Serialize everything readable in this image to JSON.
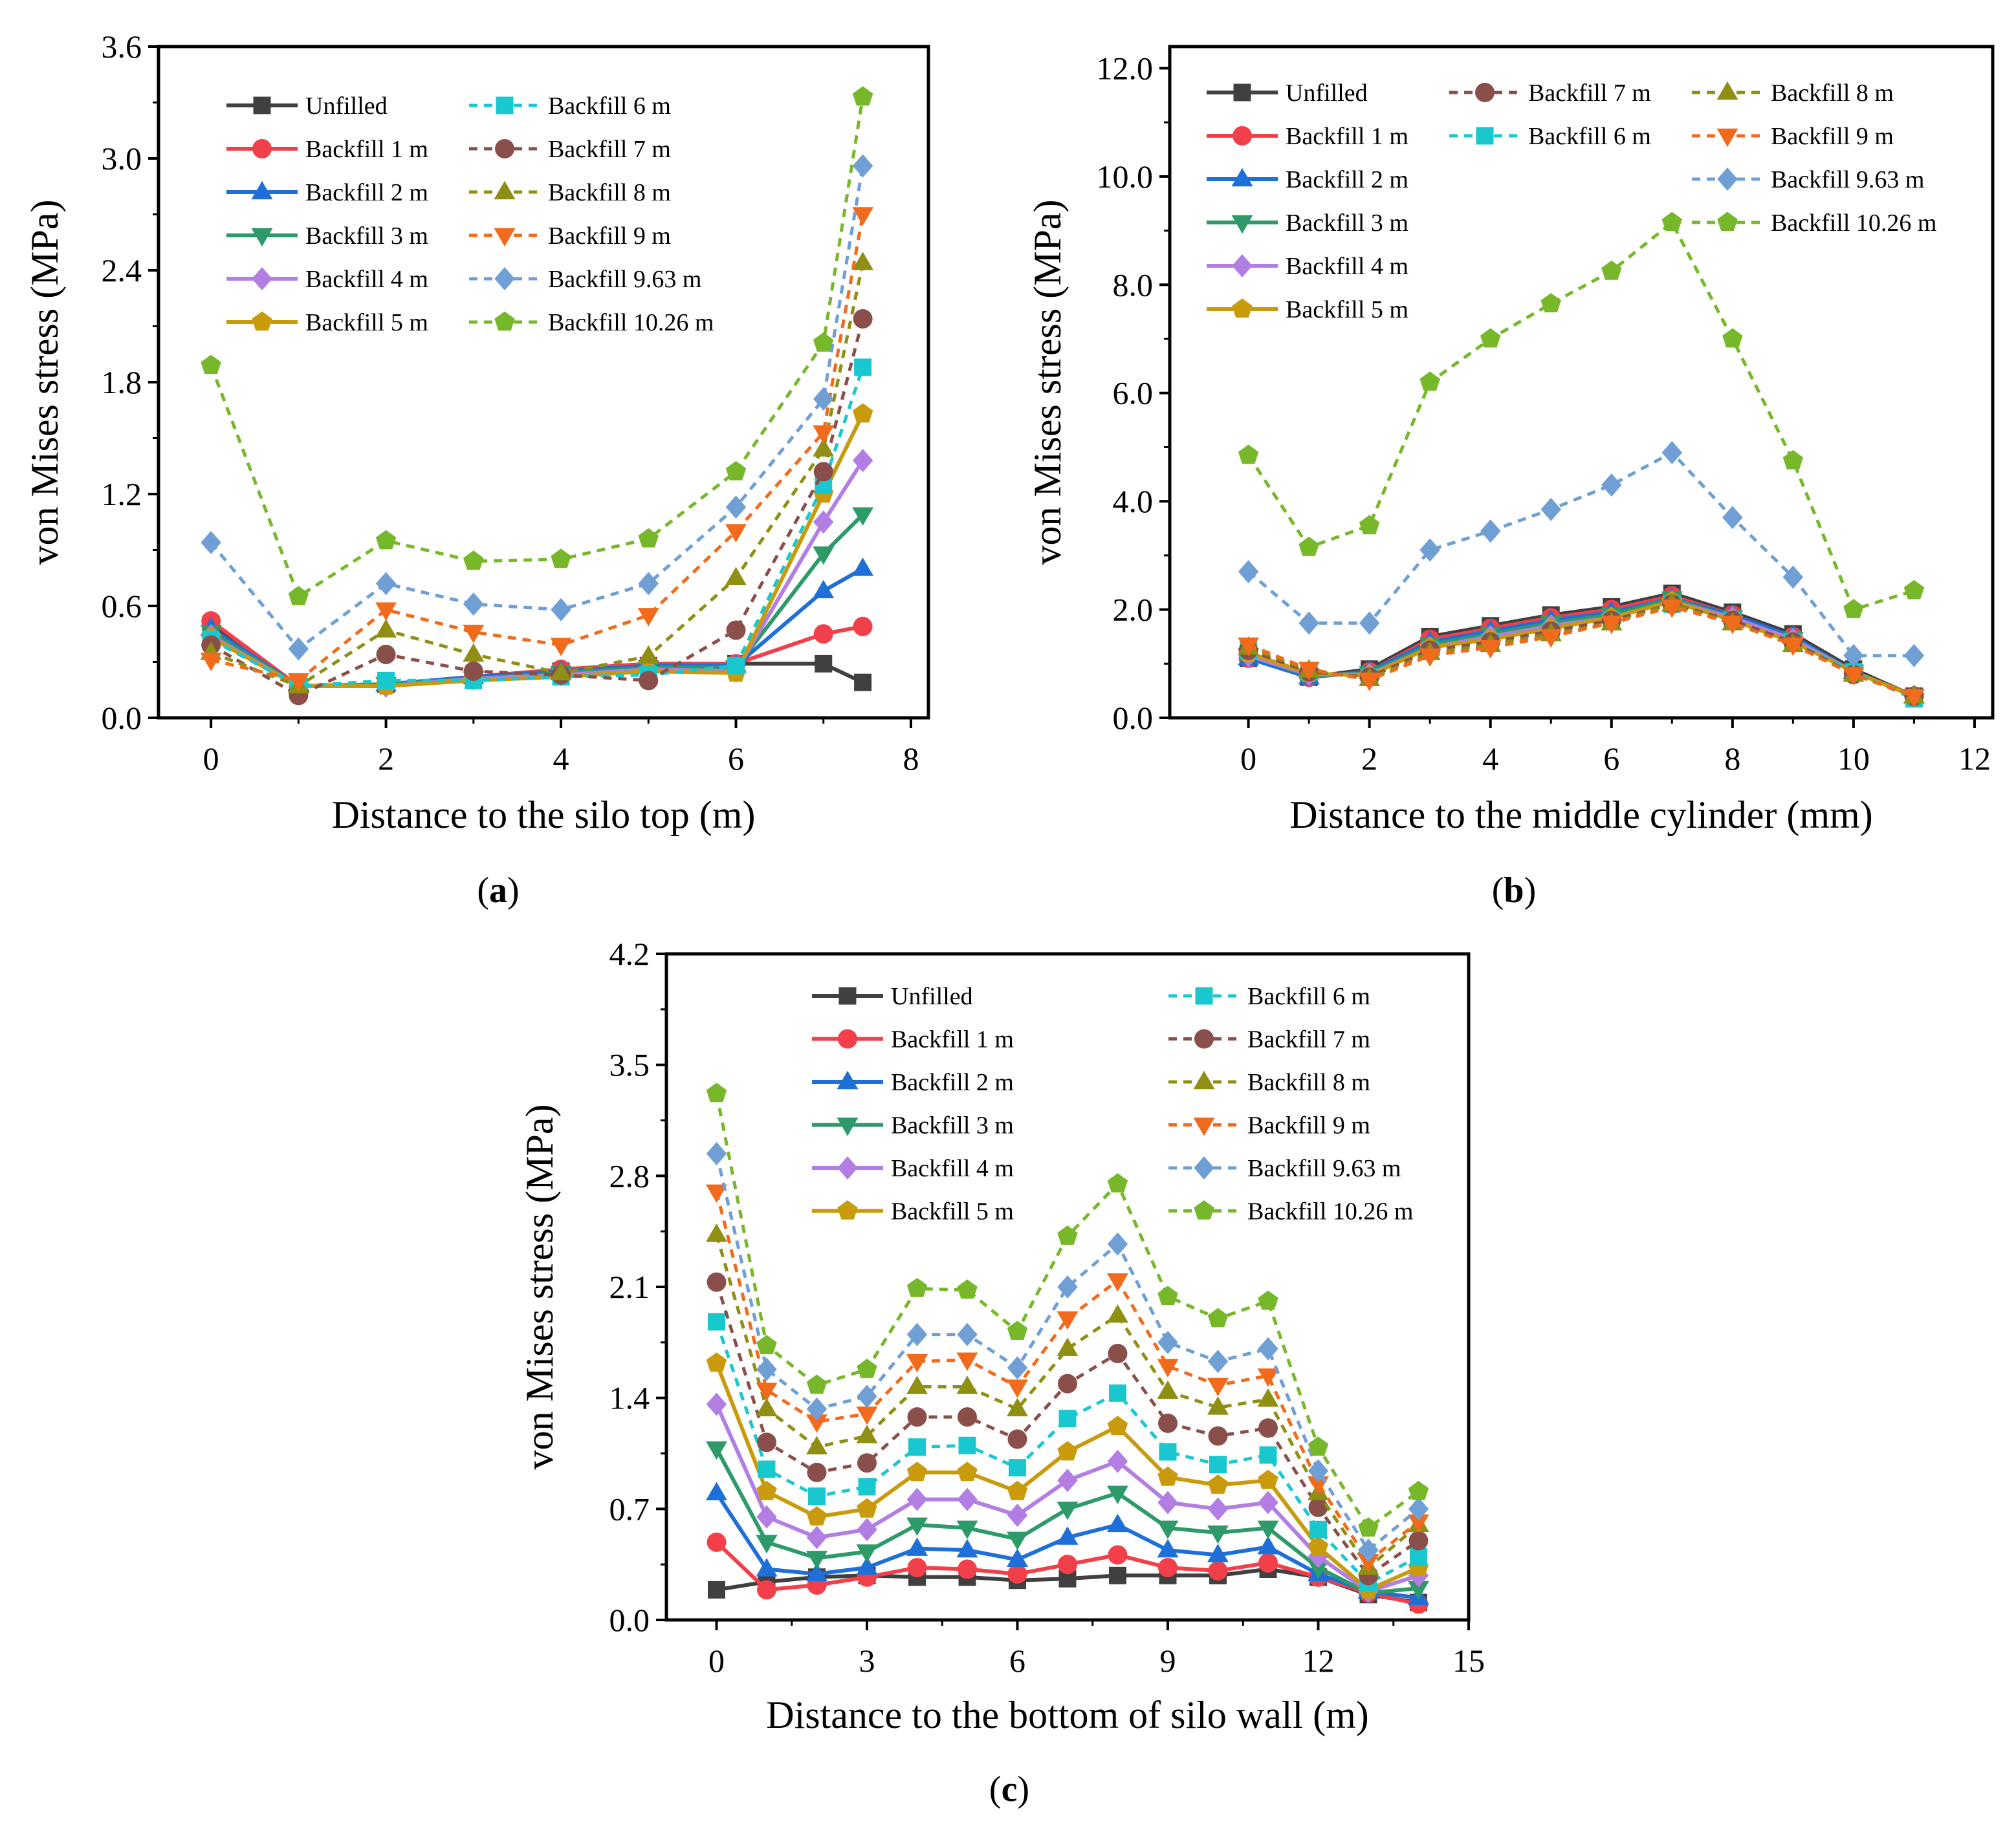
{
  "figure": {
    "panel_labels": [
      "(a)",
      "(b)",
      "(c)"
    ]
  },
  "series_styles": [
    {
      "name": "Unfilled",
      "color": "#404040",
      "marker": "square",
      "dashed": false
    },
    {
      "name": "Backfill 1 m",
      "color": "#f2404a",
      "marker": "circle",
      "dashed": false
    },
    {
      "name": "Backfill 2 m",
      "color": "#1f6fd8",
      "marker": "triangle-up",
      "dashed": false
    },
    {
      "name": "Backfill 3 m",
      "color": "#2e9a6a",
      "marker": "triangle-down",
      "dashed": false
    },
    {
      "name": "Backfill 4 m",
      "color": "#b27ee3",
      "marker": "diamond",
      "dashed": false
    },
    {
      "name": "Backfill 5 m",
      "color": "#c99a0b",
      "marker": "pentagon",
      "dashed": false
    },
    {
      "name": "Backfill 6 m",
      "color": "#19c8cf",
      "marker": "square",
      "dashed": true
    },
    {
      "name": "Backfill 7 m",
      "color": "#8a4f4a",
      "marker": "circle",
      "dashed": true
    },
    {
      "name": "Backfill 8 m",
      "color": "#8f8f13",
      "marker": "triangle-up",
      "dashed": true
    },
    {
      "name": "Backfill 9 m",
      "color": "#f26a1b",
      "marker": "triangle-down",
      "dashed": true
    },
    {
      "name": "Backfill 9.63 m",
      "color": "#6f9fd4",
      "marker": "diamond",
      "dashed": true
    },
    {
      "name": "Backfill 10.26 m",
      "color": "#76b82a",
      "marker": "pentagon",
      "dashed": true
    }
  ],
  "chart_data": [
    {
      "type": "line",
      "label": "(a)",
      "xlabel": "Distance to the silo top (m)",
      "ylabel": "von Mises stress (MPa)",
      "xlim": [
        -0.6,
        8.2
      ],
      "ylim": [
        0,
        3.6
      ],
      "xticks": [
        0,
        2,
        4,
        6,
        8
      ],
      "yticks": [
        0,
        0.6,
        1.2,
        1.8,
        2.4,
        3.0,
        3.6
      ],
      "ytick_labels": [
        "0.0",
        "0.6",
        "1.2",
        "1.8",
        "2.4",
        "3.0",
        "3.6"
      ],
      "legend_location": "upper-left, two columns",
      "legend_columns": [
        [
          0,
          1,
          2,
          3,
          4,
          5
        ],
        [
          6,
          7,
          8,
          9,
          10,
          11
        ]
      ],
      "x": [
        0,
        1,
        2,
        3,
        4,
        5,
        6,
        7,
        7.45
      ],
      "series": [
        {
          "name": "Unfilled",
          "values": [
            0.5,
            0.17,
            0.18,
            0.22,
            0.25,
            0.28,
            0.29,
            0.29,
            0.19
          ]
        },
        {
          "name": "Backfill 1 m",
          "values": [
            0.52,
            0.17,
            0.18,
            0.22,
            0.26,
            0.29,
            0.29,
            0.45,
            0.49
          ]
        },
        {
          "name": "Backfill 2 m",
          "values": [
            0.48,
            0.17,
            0.18,
            0.22,
            0.25,
            0.28,
            0.28,
            0.68,
            0.8
          ]
        },
        {
          "name": "Backfill 3 m",
          "values": [
            0.46,
            0.17,
            0.18,
            0.21,
            0.24,
            0.27,
            0.27,
            0.88,
            1.09
          ]
        },
        {
          "name": "Backfill 4 m",
          "values": [
            0.44,
            0.17,
            0.17,
            0.21,
            0.23,
            0.26,
            0.25,
            1.05,
            1.38
          ]
        },
        {
          "name": "Backfill 5 m",
          "values": [
            0.43,
            0.17,
            0.17,
            0.2,
            0.22,
            0.25,
            0.24,
            1.2,
            1.63
          ]
        },
        {
          "name": "Backfill 6 m",
          "values": [
            0.42,
            0.17,
            0.2,
            0.2,
            0.22,
            0.23,
            0.28,
            1.25,
            1.88
          ]
        },
        {
          "name": "Backfill 7 m",
          "values": [
            0.39,
            0.12,
            0.34,
            0.25,
            0.23,
            0.2,
            0.47,
            1.32,
            2.14
          ]
        },
        {
          "name": "Backfill 8 m",
          "values": [
            0.35,
            0.17,
            0.47,
            0.34,
            0.24,
            0.33,
            0.75,
            1.44,
            2.44
          ]
        },
        {
          "name": "Backfill 9 m",
          "values": [
            0.31,
            0.2,
            0.58,
            0.46,
            0.39,
            0.55,
            1.0,
            1.53,
            2.7
          ]
        },
        {
          "name": "Backfill 9.63 m",
          "values": [
            0.94,
            0.37,
            0.72,
            0.61,
            0.58,
            0.72,
            1.13,
            1.71,
            2.96
          ]
        },
        {
          "name": "Backfill 10.26 m",
          "values": [
            1.89,
            0.65,
            0.95,
            0.84,
            0.85,
            0.96,
            1.32,
            2.01,
            3.33
          ]
        }
      ]
    },
    {
      "type": "line",
      "label": "(b)",
      "xlabel": "Distance to the middle cylinder (mm)",
      "ylabel": "von Mises stress (MPa)",
      "xlim": [
        -1.3,
        12.3
      ],
      "ylim": [
        0,
        12.4
      ],
      "xticks": [
        0,
        2,
        4,
        6,
        8,
        10,
        12
      ],
      "yticks": [
        0,
        2,
        4,
        6,
        8,
        10,
        12
      ],
      "ytick_labels": [
        "0.0",
        "2.0",
        "4.0",
        "6.0",
        "8.0",
        "10.0",
        "12.0"
      ],
      "legend_location": "upper-left, three columns",
      "legend_columns": [
        [
          0,
          1,
          2,
          3,
          4,
          5
        ],
        [
          7,
          6
        ],
        [
          8,
          9,
          10,
          11
        ]
      ],
      "x": [
        0,
        1,
        2,
        3,
        4,
        5,
        6,
        7,
        8,
        9,
        10,
        11
      ],
      "series": [
        {
          "name": "Unfilled",
          "values": [
            1.1,
            0.75,
            0.9,
            1.5,
            1.7,
            1.9,
            2.05,
            2.3,
            1.95,
            1.55,
            0.9,
            0.4
          ]
        },
        {
          "name": "Backfill 1 m",
          "values": [
            1.1,
            0.75,
            0.85,
            1.45,
            1.65,
            1.85,
            2.0,
            2.25,
            1.9,
            1.5,
            0.85,
            0.4
          ]
        },
        {
          "name": "Backfill 2 m",
          "values": [
            1.1,
            0.75,
            0.85,
            1.4,
            1.6,
            1.8,
            1.95,
            2.2,
            1.9,
            1.5,
            0.85,
            0.4
          ]
        },
        {
          "name": "Backfill 3 m",
          "values": [
            1.15,
            0.78,
            0.82,
            1.35,
            1.55,
            1.75,
            1.9,
            2.2,
            1.85,
            1.45,
            0.85,
            0.4
          ]
        },
        {
          "name": "Backfill 4 m",
          "values": [
            1.15,
            0.8,
            0.8,
            1.3,
            1.5,
            1.7,
            1.85,
            2.15,
            1.85,
            1.45,
            0.85,
            0.4
          ]
        },
        {
          "name": "Backfill 5 m",
          "values": [
            1.2,
            0.82,
            0.78,
            1.3,
            1.45,
            1.65,
            1.85,
            2.15,
            1.8,
            1.4,
            0.85,
            0.4
          ]
        },
        {
          "name": "Backfill 6 m",
          "values": [
            1.25,
            0.85,
            0.75,
            1.25,
            1.4,
            1.6,
            1.8,
            2.1,
            1.8,
            1.4,
            0.85,
            0.35
          ]
        },
        {
          "name": "Backfill 7 m",
          "values": [
            1.25,
            0.85,
            0.75,
            1.25,
            1.4,
            1.6,
            1.8,
            2.1,
            1.8,
            1.4,
            0.8,
            0.4
          ]
        },
        {
          "name": "Backfill 8 m",
          "values": [
            1.3,
            0.88,
            0.72,
            1.2,
            1.35,
            1.55,
            1.75,
            2.1,
            1.75,
            1.35,
            0.8,
            0.4
          ]
        },
        {
          "name": "Backfill 9 m",
          "values": [
            1.35,
            0.9,
            0.7,
            1.15,
            1.3,
            1.5,
            1.75,
            2.05,
            1.75,
            1.35,
            0.8,
            0.4
          ]
        },
        {
          "name": "Backfill 9.63 m",
          "values": [
            2.7,
            1.75,
            1.75,
            3.1,
            3.45,
            3.85,
            4.3,
            4.9,
            3.7,
            2.6,
            1.15,
            1.15
          ]
        },
        {
          "name": "Backfill 10.26 m",
          "values": [
            4.85,
            3.15,
            3.55,
            6.2,
            7.0,
            7.65,
            8.25,
            9.15,
            7.0,
            4.75,
            2.0,
            2.35
          ]
        }
      ]
    },
    {
      "type": "line",
      "label": "(c)",
      "xlabel": "Distance to the bottom of silo wall (m)",
      "ylabel": "von Mises stress (MPa)",
      "xlim": [
        -1,
        15
      ],
      "ylim": [
        0,
        4.2
      ],
      "xticks": [
        0,
        3,
        6,
        9,
        12,
        15
      ],
      "yticks": [
        0,
        0.7,
        1.4,
        2.1,
        2.8,
        3.5,
        4.2
      ],
      "ytick_labels": [
        "0.0",
        "0.7",
        "1.4",
        "2.1",
        "2.8",
        "3.5",
        "4.2"
      ],
      "legend_location": "upper-center, two columns",
      "legend_columns": [
        [
          0,
          1,
          2,
          3,
          4,
          5
        ],
        [
          6,
          7,
          8,
          9,
          10,
          11
        ]
      ],
      "x": [
        0,
        1,
        2,
        3,
        4,
        5,
        6,
        7,
        8,
        9,
        10,
        11,
        12,
        13,
        14
      ],
      "series": [
        {
          "name": "Unfilled",
          "values": [
            0.19,
            0.24,
            0.27,
            0.28,
            0.27,
            0.27,
            0.25,
            0.26,
            0.28,
            0.28,
            0.28,
            0.32,
            0.27,
            0.16,
            0.11
          ]
        },
        {
          "name": "Backfill 1 m",
          "values": [
            0.49,
            0.19,
            0.22,
            0.27,
            0.33,
            0.32,
            0.29,
            0.35,
            0.41,
            0.33,
            0.31,
            0.36,
            0.27,
            0.17,
            0.1
          ]
        },
        {
          "name": "Backfill 2 m",
          "values": [
            0.8,
            0.32,
            0.29,
            0.33,
            0.45,
            0.44,
            0.38,
            0.52,
            0.6,
            0.44,
            0.41,
            0.46,
            0.29,
            0.18,
            0.14
          ]
        },
        {
          "name": "Backfill 3 m",
          "values": [
            1.08,
            0.49,
            0.39,
            0.43,
            0.6,
            0.58,
            0.51,
            0.7,
            0.8,
            0.58,
            0.55,
            0.58,
            0.33,
            0.17,
            0.2
          ]
        },
        {
          "name": "Backfill 4 m",
          "values": [
            1.36,
            0.65,
            0.52,
            0.57,
            0.76,
            0.76,
            0.66,
            0.88,
            1.0,
            0.74,
            0.7,
            0.74,
            0.4,
            0.18,
            0.28
          ]
        },
        {
          "name": "Backfill 5 m",
          "values": [
            1.62,
            0.81,
            0.65,
            0.7,
            0.93,
            0.93,
            0.81,
            1.06,
            1.22,
            0.9,
            0.85,
            0.88,
            0.46,
            0.19,
            0.33
          ]
        },
        {
          "name": "Backfill 6 m",
          "values": [
            1.88,
            0.95,
            0.78,
            0.84,
            1.09,
            1.1,
            0.96,
            1.27,
            1.43,
            1.06,
            0.98,
            1.04,
            0.57,
            0.23,
            0.4
          ]
        },
        {
          "name": "Backfill 7 m",
          "values": [
            2.13,
            1.12,
            0.93,
            0.99,
            1.28,
            1.28,
            1.14,
            1.49,
            1.68,
            1.24,
            1.16,
            1.21,
            0.71,
            0.28,
            0.5
          ]
        },
        {
          "name": "Backfill 8 m",
          "values": [
            2.43,
            1.33,
            1.09,
            1.16,
            1.47,
            1.47,
            1.33,
            1.71,
            1.92,
            1.44,
            1.34,
            1.39,
            0.8,
            0.33,
            0.6
          ]
        },
        {
          "name": "Backfill 9 m",
          "values": [
            2.7,
            1.45,
            1.25,
            1.3,
            1.63,
            1.64,
            1.47,
            1.9,
            2.14,
            1.6,
            1.48,
            1.54,
            0.86,
            0.37,
            0.62
          ]
        },
        {
          "name": "Backfill 9.63 m",
          "values": [
            2.94,
            1.58,
            1.33,
            1.41,
            1.8,
            1.8,
            1.59,
            2.1,
            2.37,
            1.75,
            1.63,
            1.71,
            0.94,
            0.44,
            0.7
          ]
        },
        {
          "name": "Backfill 10.26 m",
          "values": [
            3.32,
            1.73,
            1.48,
            1.58,
            2.09,
            2.08,
            1.82,
            2.42,
            2.75,
            2.04,
            1.9,
            2.01,
            1.09,
            0.58,
            0.81
          ]
        }
      ]
    }
  ]
}
